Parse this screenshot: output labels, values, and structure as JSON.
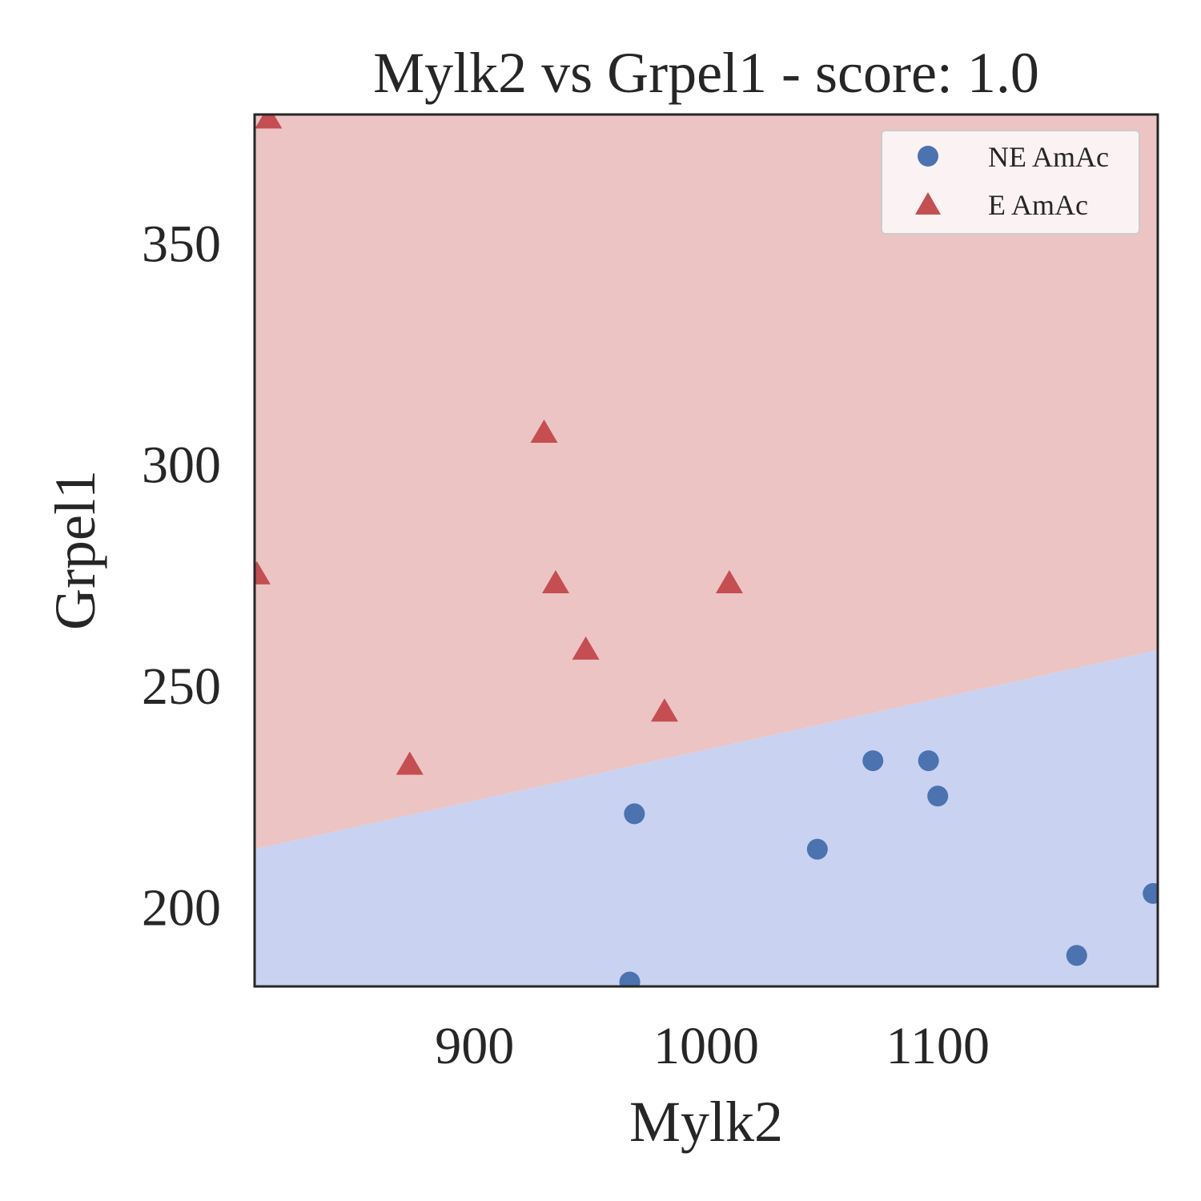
{
  "chart_data": {
    "type": "scatter",
    "title": "Mylk2 vs Grpel1 - score: 1.0",
    "xlabel": "Mylk2",
    "ylabel": "Grpel1",
    "xlim": [
      805,
      1195
    ],
    "ylim": [
      182,
      379
    ],
    "xticks": [
      900,
      1000,
      1100
    ],
    "yticks": [
      200,
      250,
      300,
      350
    ],
    "grid": false,
    "legend_position": "top-right",
    "decision_boundary": {
      "x": [
        805,
        1195
      ],
      "y": [
        213,
        258
      ]
    },
    "regions": {
      "upper_label": "E AmAc",
      "lower_label": "NE AmAc",
      "upper_color": "#ecc4c3",
      "lower_color": "#c9d2f1"
    },
    "series": [
      {
        "name": "NE AmAc",
        "marker": "circle",
        "color": "#4c72b0",
        "points": [
          {
            "x": 969,
            "y": 221
          },
          {
            "x": 967,
            "y": 183
          },
          {
            "x": 1048,
            "y": 213
          },
          {
            "x": 1072,
            "y": 233
          },
          {
            "x": 1096,
            "y": 233
          },
          {
            "x": 1100,
            "y": 225
          },
          {
            "x": 1160,
            "y": 189
          },
          {
            "x": 1193,
            "y": 203
          }
        ]
      },
      {
        "name": "E AmAc",
        "marker": "triangle",
        "color": "#c44e52",
        "points": [
          {
            "x": 811,
            "y": 378
          },
          {
            "x": 806,
            "y": 275
          },
          {
            "x": 872,
            "y": 232
          },
          {
            "x": 930,
            "y": 307
          },
          {
            "x": 935,
            "y": 273
          },
          {
            "x": 948,
            "y": 258
          },
          {
            "x": 982,
            "y": 244
          },
          {
            "x": 1010,
            "y": 273
          }
        ]
      }
    ]
  }
}
